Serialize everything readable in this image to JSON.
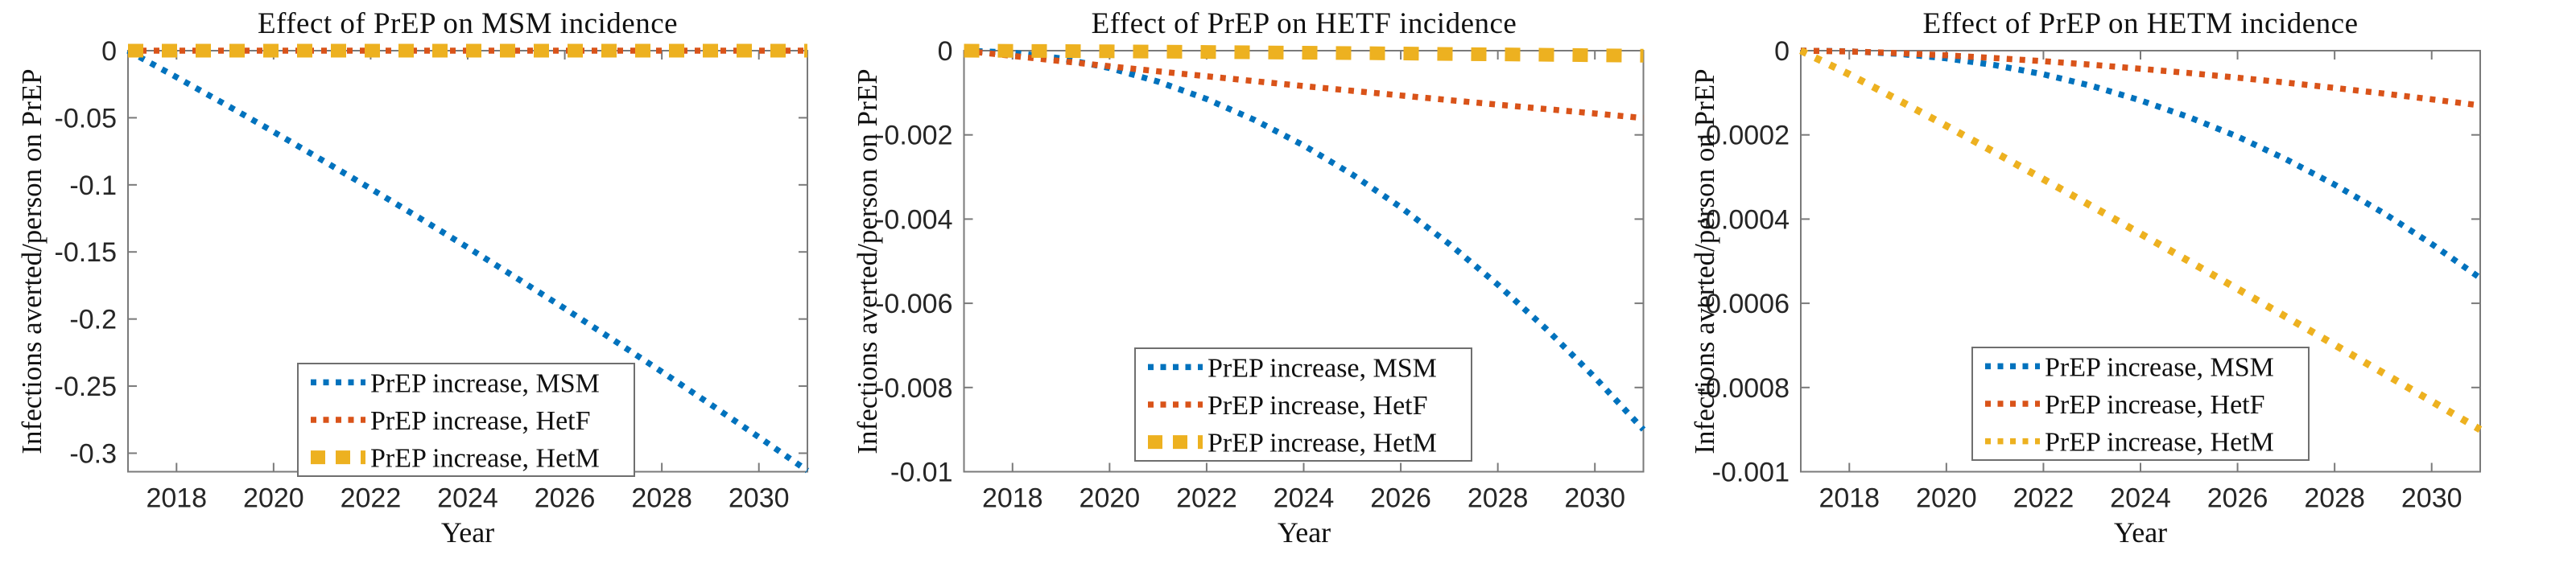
{
  "figure": {
    "x_axis_label": "Year",
    "y_axis_label": "Infections averted/person on PrEP",
    "palette": {
      "msm_blue": "#0072BD",
      "hetf_red": "#D95319",
      "hetm_yellow": "#EDB120"
    }
  },
  "chart_data": [
    {
      "type": "line",
      "title": "Effect of PrEP on MSM incidence",
      "xlabel": "Year",
      "ylabel": "Infections averted/person on PrEP",
      "grid": false,
      "legend_position": "lower center",
      "xlim": [
        2017,
        2031
      ],
      "ylim": [
        -0.3138,
        0
      ],
      "x_tick_values": [
        2018,
        2020,
        2022,
        2024,
        2026,
        2028,
        2030
      ],
      "x_tick_labels": [
        "2018",
        "2020",
        "2022",
        "2024",
        "2026",
        "2028",
        "2030"
      ],
      "y_tick_values": [
        0,
        -0.05,
        -0.1,
        -0.15,
        -0.2,
        -0.25,
        -0.3
      ],
      "y_tick_labels": [
        "0",
        "-0.05",
        "-0.1",
        "-0.15",
        "-0.2",
        "-0.25",
        "-0.3"
      ],
      "x": [
        2017,
        2018,
        2019,
        2020,
        2021,
        2022,
        2023,
        2024,
        2025,
        2026,
        2027,
        2028,
        2029,
        2030,
        2031
      ],
      "series": [
        {
          "name": "PrEP increase, MSM",
          "color": "#0072BD",
          "line_style": "dotted",
          "y": [
            0,
            -0.0198,
            -0.0399,
            -0.0605,
            -0.0815,
            -0.1028,
            -0.1245,
            -0.1467,
            -0.1693,
            -0.1922,
            -0.2156,
            -0.2393,
            -0.2635,
            -0.288,
            -0.313
          ]
        },
        {
          "name": "PrEP increase, HetF",
          "color": "#D95319",
          "line_style": "dotted",
          "y": [
            0,
            0,
            0,
            0,
            0,
            0,
            0,
            0,
            0,
            0,
            0,
            0,
            0,
            0,
            0
          ]
        },
        {
          "name": "PrEP increase, HetM",
          "color": "#EDB120",
          "line_style": "square-dashed",
          "y": [
            0,
            0,
            0,
            0,
            0,
            0,
            0,
            0,
            0,
            0,
            0,
            0,
            0,
            0,
            0
          ]
        }
      ]
    },
    {
      "type": "line",
      "title": "Effect of PrEP on HETF incidence",
      "xlabel": "Year",
      "ylabel": "Infections averted/person on PrEP",
      "grid": false,
      "legend_position": "lower center",
      "xlim": [
        2017,
        2031
      ],
      "ylim": [
        -0.01,
        0
      ],
      "x_tick_values": [
        2018,
        2020,
        2022,
        2024,
        2026,
        2028,
        2030
      ],
      "x_tick_labels": [
        "2018",
        "2020",
        "2022",
        "2024",
        "2026",
        "2028",
        "2030"
      ],
      "y_tick_values": [
        0,
        -0.002,
        -0.004,
        -0.006,
        -0.008,
        -0.01
      ],
      "y_tick_labels": [
        "0",
        "-0.002",
        "-0.004",
        "-0.006",
        "-0.008",
        "-0.01"
      ],
      "x": [
        2017,
        2018,
        2019,
        2020,
        2021,
        2022,
        2023,
        2024,
        2025,
        2026,
        2027,
        2028,
        2029,
        2030,
        2031
      ],
      "series": [
        {
          "name": "PrEP increase, MSM",
          "color": "#0072BD",
          "line_style": "dotted",
          "y": [
            0,
            -4.6e-05,
            -0.000184,
            -0.000413,
            -0.000735,
            -0.001148,
            -0.001653,
            -0.00225,
            -0.002939,
            -0.003719,
            -0.004592,
            -0.005556,
            -0.006612,
            -0.00776,
            -0.009
          ]
        },
        {
          "name": "PrEP increase, HetF",
          "color": "#D95319",
          "line_style": "dotted",
          "y": [
            0,
            -0.000124,
            -0.000248,
            -0.00037,
            -0.00049,
            -0.000608,
            -0.000725,
            -0.00084,
            -0.000953,
            -0.001064,
            -0.001174,
            -0.001281,
            -0.001387,
            -0.001491,
            -0.0016
          ]
        },
        {
          "name": "PrEP increase, HetM",
          "color": "#EDB120",
          "line_style": "square-dashed",
          "y": [
            0,
            -3.9e-06,
            -9.6e-06,
            -1.62e-05,
            -2.35e-05,
            -3.15e-05,
            -3.99e-05,
            -4.87e-05,
            -5.8e-05,
            -6.76e-05,
            -7.75e-05,
            -8.77e-05,
            -9.82e-05,
            -0.000109,
            -0.00012
          ]
        }
      ]
    },
    {
      "type": "line",
      "title": "Effect of PrEP on HETM incidence",
      "xlabel": "Year",
      "ylabel": "Infections averted/person on PrEP",
      "grid": false,
      "legend_position": "lower center",
      "xlim": [
        2017,
        2031
      ],
      "ylim": [
        -0.001,
        0
      ],
      "x_tick_values": [
        2018,
        2020,
        2022,
        2024,
        2026,
        2028,
        2030
      ],
      "x_tick_labels": [
        "2018",
        "2020",
        "2022",
        "2024",
        "2026",
        "2028",
        "2030"
      ],
      "y_tick_values": [
        0,
        -0.0002,
        -0.0004,
        -0.0006,
        -0.0008,
        -0.001
      ],
      "y_tick_labels": [
        "0",
        "-0.0002",
        "-0.0004",
        "-0.0006",
        "-0.0008",
        "-0.001"
      ],
      "x": [
        2017,
        2018,
        2019,
        2020,
        2021,
        2022,
        2023,
        2024,
        2025,
        2026,
        2027,
        2028,
        2029,
        2030,
        2031
      ],
      "series": [
        {
          "name": "PrEP increase, MSM",
          "color": "#0072BD",
          "line_style": "dotted",
          "y": [
            0,
            -1.6e-06,
            -7.5e-06,
            -1.82e-05,
            -3.43e-05,
            -5.61e-05,
            -8.38e-05,
            -0.000118,
            -0.000158,
            -0.000204,
            -0.000258,
            -0.000318,
            -0.000385,
            -0.000459,
            -0.00054
          ]
        },
        {
          "name": "PrEP increase, HetF",
          "color": "#D95319",
          "line_style": "dotted",
          "y": [
            0,
            -1.9e-06,
            -5.8e-06,
            -1.11e-05,
            -1.75e-05,
            -2.5e-05,
            -3.35e-05,
            -4.29e-05,
            -5.31e-05,
            -6.41e-05,
            -7.59e-05,
            -8.84e-05,
            -0.0001016,
            -0.0001155,
            -0.00013
          ]
        },
        {
          "name": "PrEP increase, HetM",
          "color": "#EDB120",
          "line_style": "dotted",
          "y": [
            0,
            -5.63e-05,
            -0.0001167,
            -0.0001787,
            -0.0002416,
            -0.0003053,
            -0.0003697,
            -0.0004347,
            -0.0005001,
            -0.0005659,
            -0.0006322,
            -0.0006986,
            -0.0007655,
            -0.0008327,
            -0.0009
          ]
        }
      ]
    }
  ]
}
